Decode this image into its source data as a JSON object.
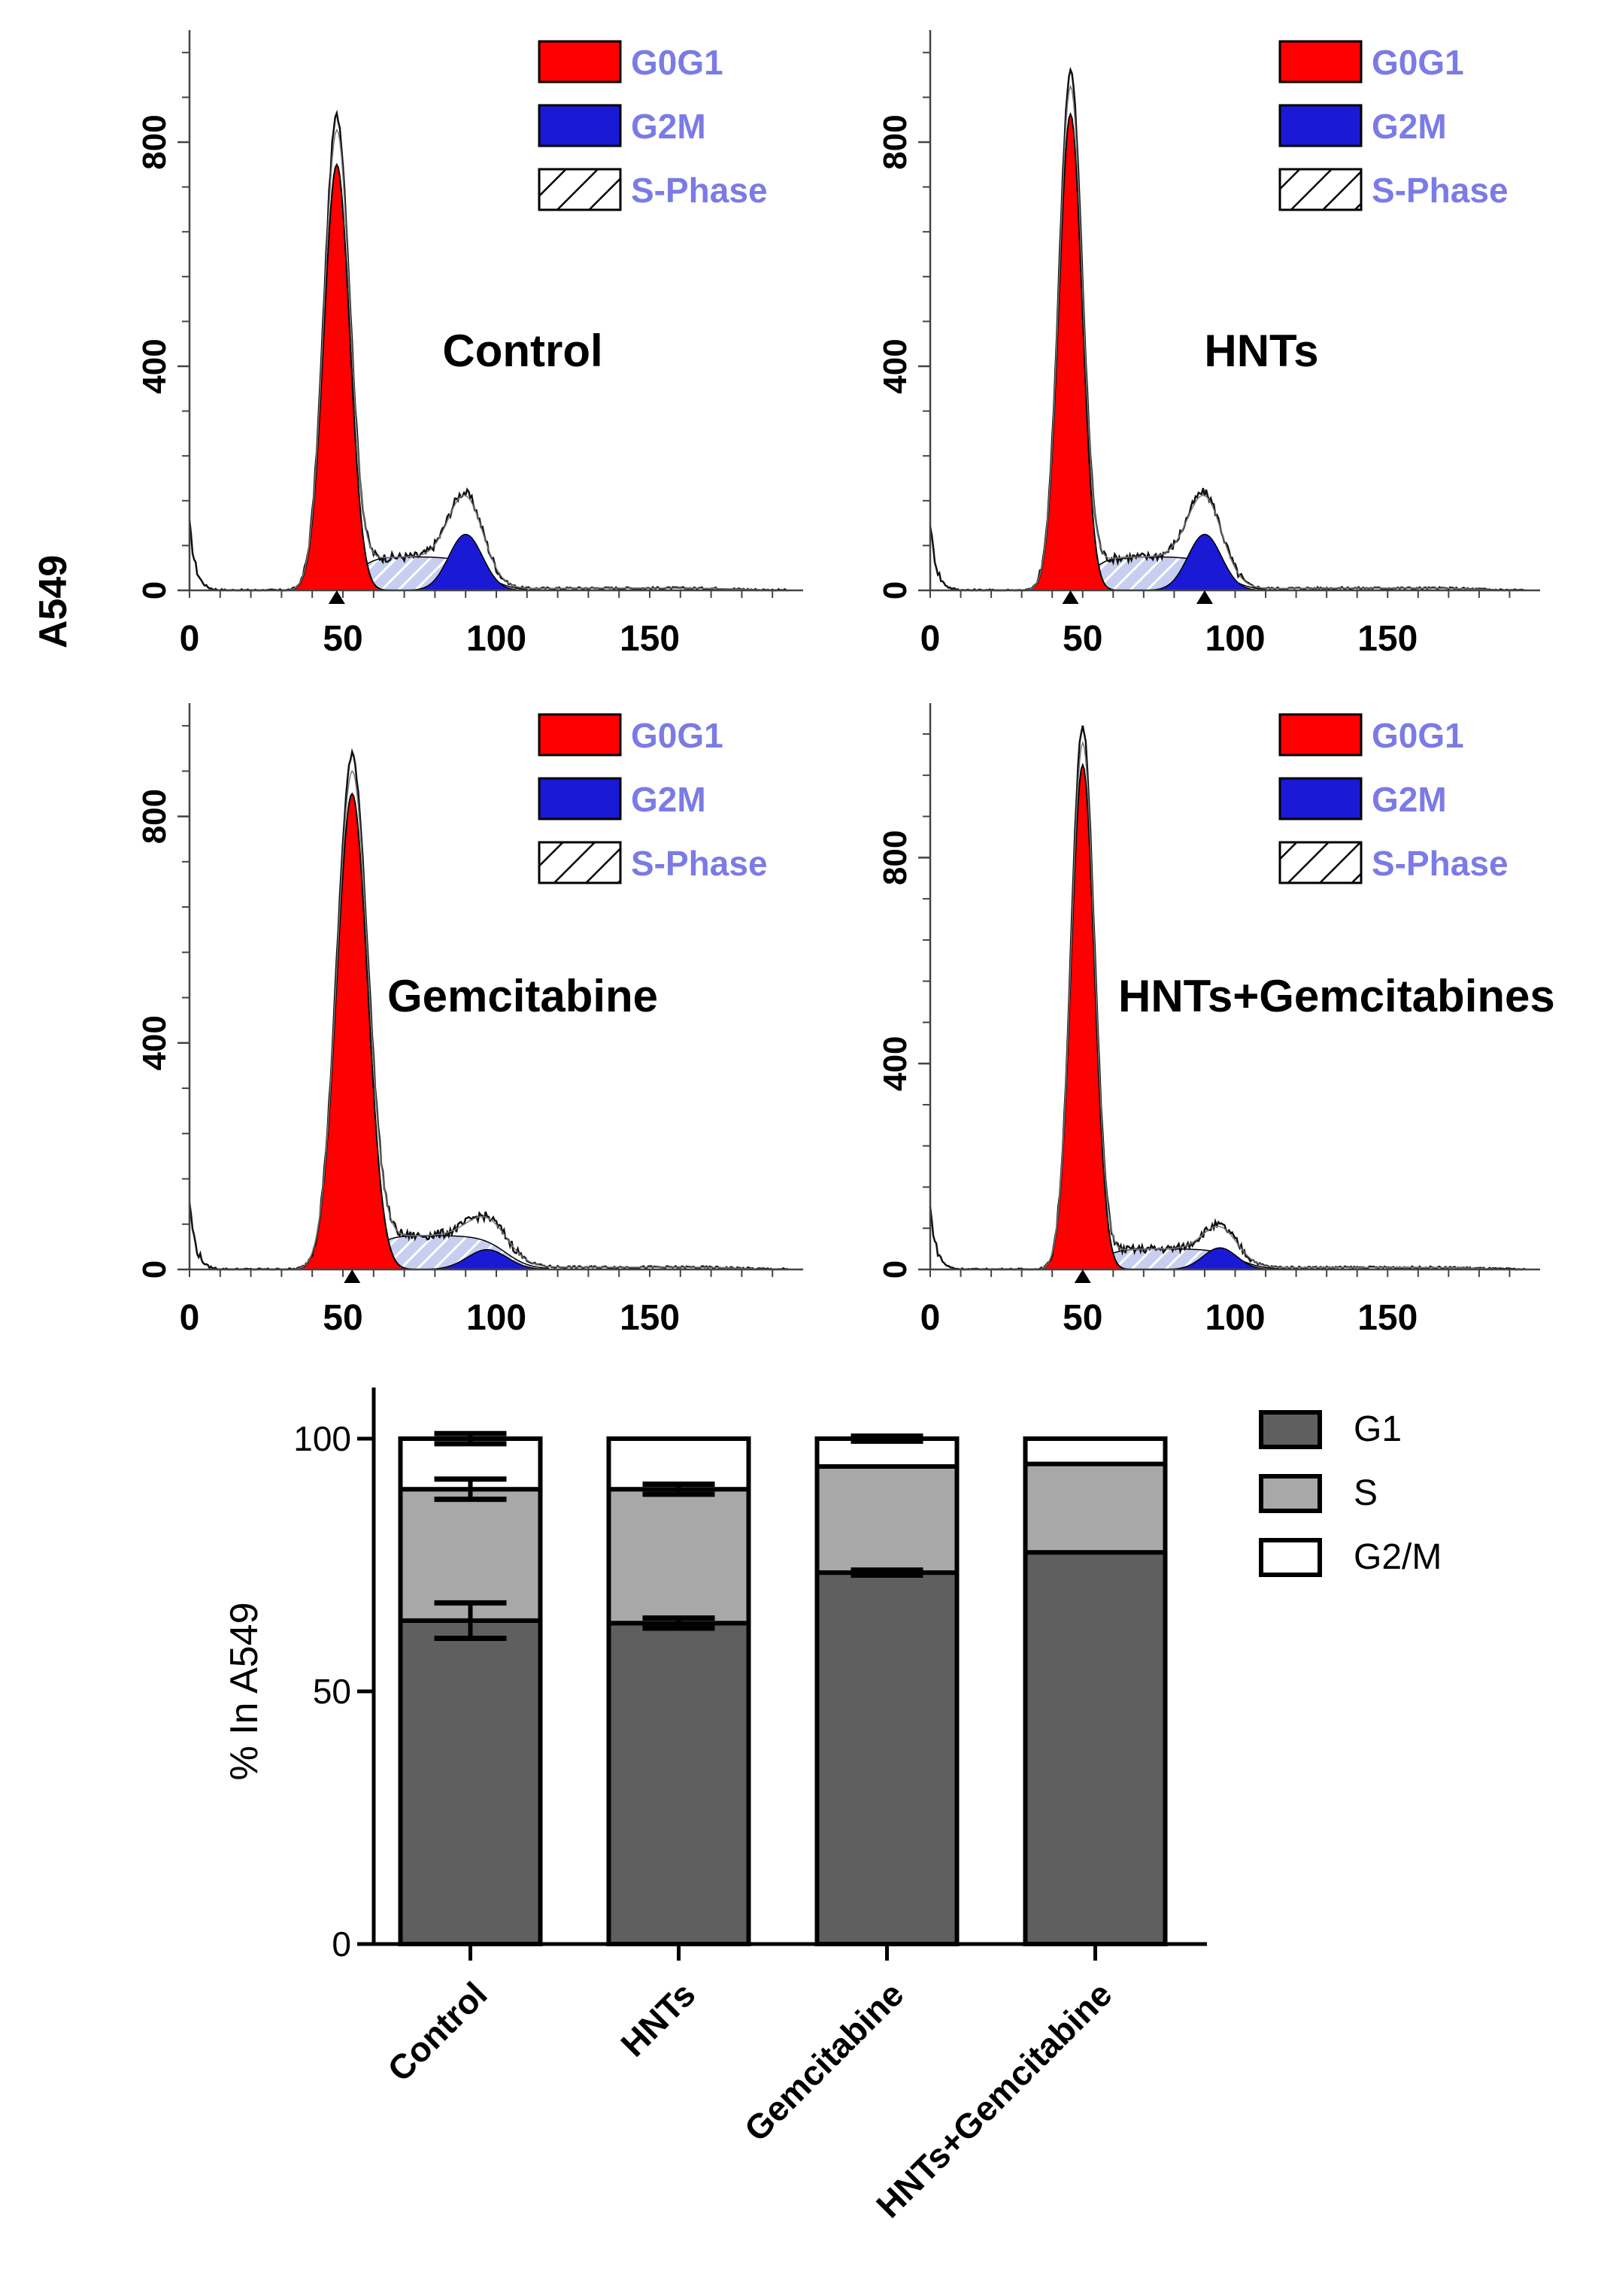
{
  "figure": {
    "row_label": "A549"
  },
  "colors": {
    "g0g1_fill": "#ff0000",
    "g2m_fill": "#1a1ad6",
    "s_fill": "#c8cef0",
    "legend_text": "#7b7be6",
    "bar_g1": "#5f5f5f",
    "bar_s": "#a8a8a8",
    "bar_g2m": "#ffffff"
  },
  "chart_data": [
    {
      "type": "area",
      "title": "Control",
      "x_ticks": [
        "0",
        "50",
        "100",
        "150"
      ],
      "y_ticks": [
        "0",
        "400",
        "800"
      ],
      "xlim": [
        0,
        200
      ],
      "ylim": [
        0,
        1000
      ],
      "legend": [
        "G0G1",
        "G2M",
        "S-Phase"
      ],
      "g0g1_peak": {
        "x": 48,
        "y": 760,
        "sd": 4.2
      },
      "g2m_peak": {
        "x": 90,
        "y": 100,
        "sd": 5.5
      },
      "s_phase_level": 60,
      "total_peak": 840,
      "peak_markers": [
        48
      ]
    },
    {
      "type": "area",
      "title": "HNTs",
      "x_ticks": [
        "0",
        "50",
        "100",
        "150"
      ],
      "y_ticks": [
        "0",
        "400",
        "800"
      ],
      "xlim": [
        0,
        200
      ],
      "ylim": [
        0,
        1000
      ],
      "legend": [
        "G0G1",
        "G2M",
        "S-Phase"
      ],
      "g0g1_peak": {
        "x": 46,
        "y": 850,
        "sd": 3.8
      },
      "g2m_peak": {
        "x": 90,
        "y": 100,
        "sd": 5.5
      },
      "s_phase_level": 60,
      "total_peak": 920,
      "peak_markers": [
        46,
        90
      ]
    },
    {
      "type": "area",
      "title": "Gemcitabine",
      "x_ticks": [
        "0",
        "50",
        "100",
        "150"
      ],
      "y_ticks": [
        "0",
        "400",
        "800"
      ],
      "xlim": [
        0,
        200
      ],
      "ylim": [
        0,
        1000
      ],
      "legend": [
        "G0G1",
        "G2M",
        "S-Phase"
      ],
      "g0g1_peak": {
        "x": 53,
        "y": 840,
        "sd": 5.0
      },
      "g2m_peak": {
        "x": 97,
        "y": 35,
        "sd": 6.5
      },
      "s_phase_level": 60,
      "total_peak": 900,
      "peak_markers": [
        53
      ]
    },
    {
      "type": "area",
      "title": "HNTs+Gemcitabines",
      "x_ticks": [
        "0",
        "50",
        "100",
        "150"
      ],
      "y_ticks": [
        "0",
        "400",
        "800"
      ],
      "xlim": [
        0,
        200
      ],
      "ylim": [
        0,
        1100
      ],
      "legend": [
        "G0G1",
        "G2M",
        "S-Phase"
      ],
      "g0g1_peak": {
        "x": 50,
        "y": 980,
        "sd": 3.8
      },
      "g2m_peak": {
        "x": 95,
        "y": 42,
        "sd": 5.5
      },
      "s_phase_level": 40,
      "total_peak": 1050,
      "peak_markers": [
        50
      ]
    },
    {
      "type": "bar",
      "stacked": true,
      "ylabel": "% In A549",
      "ylim": [
        0,
        100
      ],
      "y_ticks": [
        "0",
        "50",
        "100"
      ],
      "categories": [
        "Control",
        "HNTs",
        "Gemcitabine",
        "HNTs+Gemcitabine"
      ],
      "series": [
        {
          "name": "G1",
          "values": [
            64,
            63.5,
            73.5,
            77.5
          ],
          "errors": [
            3.5,
            1,
            0.5,
            0
          ]
        },
        {
          "name": "S",
          "values": [
            26,
            26.5,
            21,
            17.5
          ],
          "errors": [
            2,
            1,
            0,
            0
          ]
        },
        {
          "name": "G2/M",
          "values": [
            10,
            10,
            5.5,
            5
          ],
          "errors": [
            1,
            0,
            0.5,
            0
          ]
        }
      ]
    }
  ]
}
